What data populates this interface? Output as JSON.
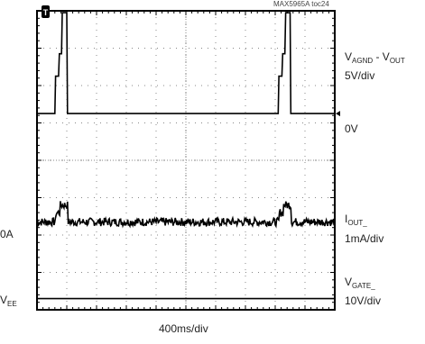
{
  "figure_id": "MAX5965A toc24",
  "chart_data": {
    "type": "line",
    "title": "",
    "xlabel": "400ms/div",
    "ylabel": "",
    "divisions": {
      "x": 10,
      "y": 8
    },
    "x_unit": "ms",
    "x_per_div": 400,
    "xlim": [
      0,
      4000
    ],
    "trigger_marker": {
      "label": "T",
      "x": 400
    },
    "left_labels": {
      "zero_current": "0A",
      "vee_main": "V",
      "vee_sub": "EE"
    },
    "series": [
      {
        "name": "",
        "label_main": "V",
        "label_sub": "AGND",
        "label_mid": " - V",
        "label_sub2": "OUT",
        "scale": "5V/div",
        "ref_label": "0V",
        "ref_div": 5.25,
        "unit": "V",
        "per_div": 5,
        "x": [
          0,
          240,
          250,
          290,
          300,
          330,
          340,
          400,
          410,
          3240,
          3250,
          3290,
          3300,
          3330,
          3340,
          3400,
          3410,
          4000
        ],
        "y": [
          0,
          0,
          5,
          5,
          8,
          8,
          13.5,
          13.5,
          0,
          0,
          5,
          5,
          8,
          8,
          13.5,
          13.5,
          0,
          0
        ]
      },
      {
        "name": "",
        "label_main": "I",
        "label_sub": "OUT_",
        "scale": "1mA/div",
        "ref_label": "0A",
        "ref_div": 2.35,
        "unit": "mA",
        "per_div": 1,
        "x": [
          0,
          240,
          250,
          300,
          310,
          400,
          410,
          3240,
          3250,
          3300,
          3310,
          3400,
          3410,
          4000
        ],
        "y": [
          0,
          0,
          0.25,
          0.25,
          0.45,
          0.45,
          0,
          0,
          0.25,
          0.25,
          0.45,
          0.45,
          0,
          0
        ]
      },
      {
        "name": "",
        "label_main": "V",
        "label_sub": "GATE_",
        "scale": "10V/div",
        "ref_label": "V_EE",
        "ref_div": 0.3,
        "unit": "V",
        "per_div": 10,
        "x": [
          0,
          4000
        ],
        "y": [
          0,
          0
        ]
      }
    ]
  }
}
